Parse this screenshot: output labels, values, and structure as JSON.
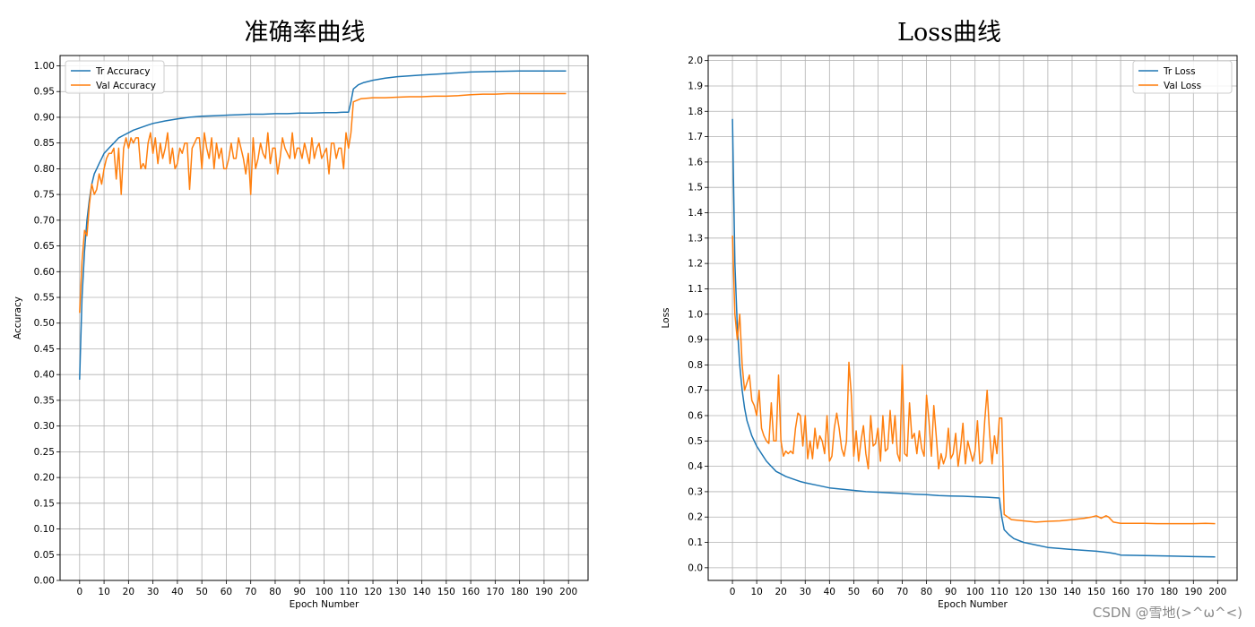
{
  "chart_data": [
    {
      "type": "line",
      "title": "准确率曲线",
      "xlabel": "Epoch Number",
      "ylabel": "Accuracy",
      "xlim": [
        -8,
        208
      ],
      "ylim": [
        0.0,
        1.02
      ],
      "xticks": [
        0,
        10,
        20,
        30,
        40,
        50,
        60,
        70,
        80,
        90,
        100,
        110,
        120,
        130,
        140,
        150,
        160,
        170,
        180,
        190,
        200
      ],
      "yticks": [
        0.0,
        0.05,
        0.1,
        0.15,
        0.2,
        0.25,
        0.3,
        0.35,
        0.4,
        0.45,
        0.5,
        0.55,
        0.6,
        0.65,
        0.7,
        0.75,
        0.8,
        0.85,
        0.9,
        0.95,
        1.0
      ],
      "ytick_decimals": 2,
      "grid": true,
      "legend_position": "top-left",
      "series": [
        {
          "name": "Tr Accuracy",
          "color": "#1f77b4",
          "x": [
            0,
            1,
            2,
            3,
            4,
            5,
            6,
            7,
            8,
            9,
            10,
            12,
            14,
            16,
            18,
            20,
            22,
            25,
            28,
            30,
            35,
            40,
            45,
            50,
            55,
            60,
            65,
            70,
            75,
            80,
            85,
            90,
            95,
            100,
            105,
            108,
            110,
            111,
            112,
            114,
            116,
            120,
            125,
            130,
            140,
            150,
            160,
            170,
            180,
            190,
            199
          ],
          "values": [
            0.39,
            0.55,
            0.64,
            0.7,
            0.74,
            0.77,
            0.79,
            0.8,
            0.81,
            0.82,
            0.83,
            0.84,
            0.85,
            0.86,
            0.865,
            0.87,
            0.875,
            0.88,
            0.885,
            0.888,
            0.893,
            0.897,
            0.9,
            0.902,
            0.903,
            0.904,
            0.905,
            0.906,
            0.906,
            0.907,
            0.907,
            0.908,
            0.908,
            0.909,
            0.909,
            0.91,
            0.91,
            0.93,
            0.955,
            0.963,
            0.967,
            0.972,
            0.976,
            0.979,
            0.982,
            0.985,
            0.988,
            0.989,
            0.99,
            0.99,
            0.99
          ]
        },
        {
          "name": "Val Accuracy",
          "color": "#ff7f0e",
          "x": [
            0,
            1,
            2,
            3,
            4,
            5,
            6,
            7,
            8,
            9,
            10,
            11,
            12,
            13,
            14,
            15,
            16,
            17,
            18,
            19,
            20,
            21,
            22,
            23,
            24,
            25,
            26,
            27,
            28,
            29,
            30,
            31,
            32,
            33,
            34,
            35,
            36,
            37,
            38,
            39,
            40,
            41,
            42,
            43,
            44,
            45,
            46,
            47,
            48,
            49,
            50,
            51,
            52,
            53,
            54,
            55,
            56,
            57,
            58,
            59,
            60,
            61,
            62,
            63,
            64,
            65,
            66,
            67,
            68,
            69,
            70,
            71,
            72,
            73,
            74,
            75,
            76,
            77,
            78,
            79,
            80,
            81,
            82,
            83,
            84,
            85,
            86,
            87,
            88,
            89,
            90,
            91,
            92,
            93,
            94,
            95,
            96,
            97,
            98,
            99,
            100,
            101,
            102,
            103,
            104,
            105,
            106,
            107,
            108,
            109,
            110,
            111,
            112,
            115,
            120,
            125,
            130,
            135,
            140,
            145,
            150,
            155,
            160,
            165,
            170,
            175,
            180,
            185,
            190,
            195,
            199
          ],
          "values": [
            0.52,
            0.62,
            0.68,
            0.67,
            0.73,
            0.77,
            0.75,
            0.76,
            0.79,
            0.77,
            0.8,
            0.82,
            0.83,
            0.83,
            0.84,
            0.78,
            0.84,
            0.75,
            0.84,
            0.86,
            0.84,
            0.86,
            0.85,
            0.86,
            0.86,
            0.8,
            0.81,
            0.8,
            0.85,
            0.87,
            0.83,
            0.86,
            0.81,
            0.85,
            0.82,
            0.84,
            0.87,
            0.81,
            0.84,
            0.8,
            0.81,
            0.84,
            0.83,
            0.85,
            0.85,
            0.76,
            0.84,
            0.85,
            0.86,
            0.86,
            0.8,
            0.87,
            0.84,
            0.82,
            0.86,
            0.8,
            0.85,
            0.82,
            0.84,
            0.8,
            0.8,
            0.82,
            0.85,
            0.82,
            0.82,
            0.86,
            0.84,
            0.82,
            0.79,
            0.83,
            0.75,
            0.86,
            0.8,
            0.82,
            0.85,
            0.83,
            0.82,
            0.87,
            0.81,
            0.84,
            0.84,
            0.79,
            0.82,
            0.86,
            0.84,
            0.83,
            0.82,
            0.87,
            0.82,
            0.84,
            0.84,
            0.82,
            0.85,
            0.83,
            0.81,
            0.86,
            0.82,
            0.84,
            0.85,
            0.82,
            0.83,
            0.84,
            0.79,
            0.85,
            0.85,
            0.82,
            0.84,
            0.84,
            0.8,
            0.87,
            0.84,
            0.87,
            0.93,
            0.936,
            0.938,
            0.938,
            0.939,
            0.94,
            0.94,
            0.941,
            0.941,
            0.942,
            0.944,
            0.945,
            0.945,
            0.946,
            0.946,
            0.946,
            0.946,
            0.946,
            0.946
          ]
        }
      ]
    },
    {
      "type": "line",
      "title": "Loss曲线",
      "xlabel": "Epoch Number",
      "ylabel": "Loss",
      "xlim": [
        -10,
        208
      ],
      "ylim": [
        -0.05,
        2.02
      ],
      "xticks": [
        0,
        10,
        20,
        30,
        40,
        50,
        60,
        70,
        80,
        90,
        100,
        110,
        120,
        130,
        140,
        150,
        160,
        170,
        180,
        190,
        200
      ],
      "yticks": [
        0.0,
        0.1,
        0.2,
        0.3,
        0.4,
        0.5,
        0.6,
        0.7,
        0.8,
        0.9,
        1.0,
        1.1,
        1.2,
        1.3,
        1.4,
        1.5,
        1.6,
        1.7,
        1.8,
        1.9,
        2.0
      ],
      "ytick_decimals": 1,
      "grid": true,
      "legend_position": "top-right",
      "series": [
        {
          "name": "Tr Loss",
          "color": "#1f77b4",
          "x": [
            0,
            1,
            2,
            3,
            4,
            5,
            6,
            7,
            8,
            9,
            10,
            12,
            14,
            16,
            18,
            20,
            22,
            25,
            28,
            30,
            35,
            40,
            45,
            50,
            55,
            60,
            65,
            70,
            75,
            80,
            85,
            90,
            95,
            100,
            105,
            110,
            111,
            112,
            114,
            116,
            120,
            125,
            130,
            140,
            150,
            155,
            158,
            160,
            170,
            180,
            190,
            199
          ],
          "values": [
            1.77,
            1.2,
            0.95,
            0.8,
            0.7,
            0.63,
            0.58,
            0.55,
            0.52,
            0.5,
            0.48,
            0.45,
            0.42,
            0.4,
            0.38,
            0.37,
            0.36,
            0.35,
            0.34,
            0.335,
            0.325,
            0.315,
            0.31,
            0.305,
            0.3,
            0.298,
            0.295,
            0.293,
            0.29,
            0.288,
            0.285,
            0.283,
            0.282,
            0.28,
            0.278,
            0.275,
            0.2,
            0.15,
            0.13,
            0.115,
            0.1,
            0.09,
            0.08,
            0.072,
            0.065,
            0.06,
            0.055,
            0.05,
            0.048,
            0.046,
            0.044,
            0.043
          ]
        },
        {
          "name": "Val Loss",
          "color": "#ff7f0e",
          "x": [
            0,
            1,
            2,
            3,
            4,
            5,
            6,
            7,
            8,
            9,
            10,
            11,
            12,
            13,
            14,
            15,
            16,
            17,
            18,
            19,
            20,
            21,
            22,
            23,
            24,
            25,
            26,
            27,
            28,
            29,
            30,
            31,
            32,
            33,
            34,
            35,
            36,
            37,
            38,
            39,
            40,
            41,
            42,
            43,
            44,
            45,
            46,
            47,
            48,
            49,
            50,
            51,
            52,
            53,
            54,
            55,
            56,
            57,
            58,
            59,
            60,
            61,
            62,
            63,
            64,
            65,
            66,
            67,
            68,
            69,
            70,
            71,
            72,
            73,
            74,
            75,
            76,
            77,
            78,
            79,
            80,
            81,
            82,
            83,
            84,
            85,
            86,
            87,
            88,
            89,
            90,
            91,
            92,
            93,
            94,
            95,
            96,
            97,
            98,
            99,
            100,
            101,
            102,
            103,
            104,
            105,
            106,
            107,
            108,
            109,
            110,
            111,
            112,
            115,
            120,
            125,
            130,
            135,
            140,
            145,
            148,
            150,
            152,
            154,
            155,
            157,
            160,
            165,
            170,
            175,
            180,
            185,
            190,
            195,
            199
          ],
          "values": [
            1.31,
            1.0,
            0.9,
            1.0,
            0.8,
            0.7,
            0.73,
            0.76,
            0.66,
            0.64,
            0.6,
            0.7,
            0.55,
            0.52,
            0.5,
            0.49,
            0.65,
            0.5,
            0.5,
            0.76,
            0.5,
            0.44,
            0.46,
            0.45,
            0.46,
            0.45,
            0.55,
            0.61,
            0.6,
            0.48,
            0.6,
            0.43,
            0.5,
            0.43,
            0.55,
            0.47,
            0.52,
            0.5,
            0.45,
            0.6,
            0.42,
            0.44,
            0.55,
            0.61,
            0.55,
            0.47,
            0.44,
            0.5,
            0.81,
            0.68,
            0.44,
            0.54,
            0.42,
            0.5,
            0.56,
            0.45,
            0.39,
            0.6,
            0.48,
            0.49,
            0.55,
            0.42,
            0.6,
            0.46,
            0.47,
            0.62,
            0.49,
            0.6,
            0.45,
            0.42,
            0.8,
            0.45,
            0.44,
            0.65,
            0.51,
            0.53,
            0.45,
            0.54,
            0.47,
            0.44,
            0.68,
            0.58,
            0.44,
            0.64,
            0.52,
            0.39,
            0.45,
            0.41,
            0.44,
            0.55,
            0.43,
            0.45,
            0.53,
            0.4,
            0.47,
            0.57,
            0.41,
            0.5,
            0.46,
            0.42,
            0.46,
            0.58,
            0.41,
            0.42,
            0.58,
            0.7,
            0.53,
            0.41,
            0.52,
            0.45,
            0.59,
            0.59,
            0.21,
            0.19,
            0.185,
            0.18,
            0.183,
            0.185,
            0.19,
            0.195,
            0.2,
            0.205,
            0.195,
            0.205,
            0.2,
            0.18,
            0.175,
            0.175,
            0.175,
            0.174,
            0.174,
            0.174,
            0.174,
            0.175,
            0.174
          ]
        }
      ]
    }
  ],
  "watermark": "CSDN @雪地(>^ω^<)"
}
